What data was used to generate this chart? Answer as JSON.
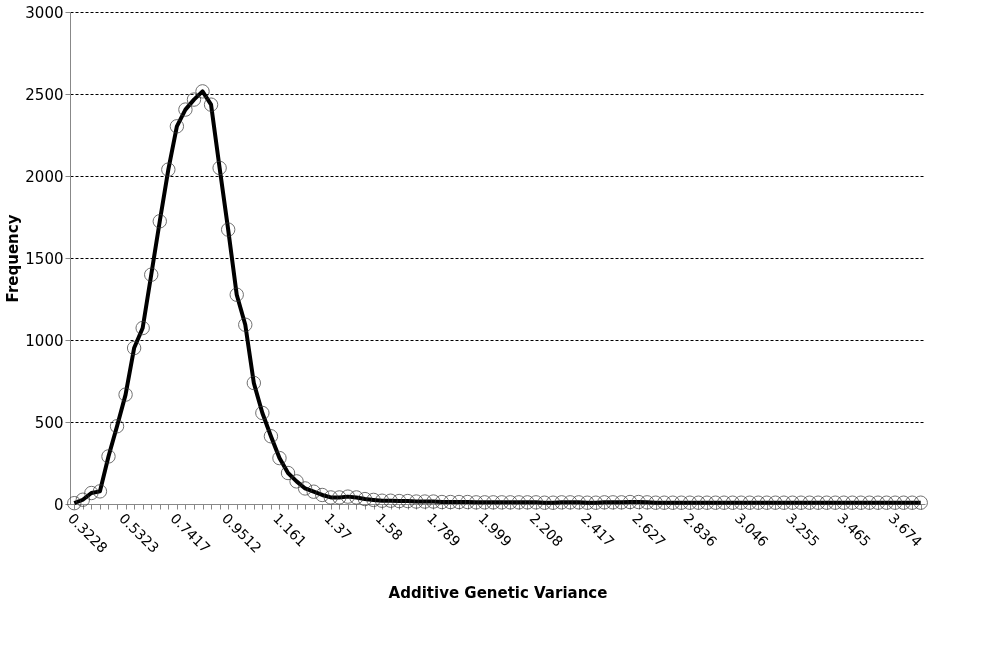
{
  "chart_data": {
    "type": "line",
    "xlabel": "Additive Genetic Variance",
    "ylabel": "Frequency",
    "categories": [
      "0.3228",
      null,
      null,
      null,
      null,
      null,
      "0.5323",
      null,
      null,
      null,
      null,
      null,
      "0.7417",
      null,
      null,
      null,
      null,
      null,
      "0.9512",
      null,
      null,
      null,
      null,
      null,
      "1.161",
      null,
      null,
      null,
      null,
      null,
      "1.37",
      null,
      null,
      null,
      null,
      null,
      "1.58",
      null,
      null,
      null,
      null,
      null,
      "1.789",
      null,
      null,
      null,
      null,
      null,
      "1.999",
      null,
      null,
      null,
      null,
      null,
      "2.208",
      null,
      null,
      null,
      null,
      null,
      "2.417",
      null,
      null,
      null,
      null,
      null,
      "2.627",
      null,
      null,
      null,
      null,
      null,
      "2.836",
      null,
      null,
      null,
      null,
      null,
      "3.046",
      null,
      null,
      null,
      null,
      null,
      "3.255",
      null,
      null,
      null,
      null,
      null,
      "3.465",
      null,
      null,
      null,
      null,
      null,
      "3.674",
      null,
      null,
      null
    ],
    "series": [
      {
        "color": "#000000",
        "values": [
          5,
          26,
          67,
          77,
          290,
          474,
          667,
          951,
          1073,
          1398,
          1724,
          2039,
          2303,
          2405,
          2466,
          2516,
          2435,
          2049,
          1673,
          1276,
          1093,
          738,
          555,
          413,
          280,
          189,
          138,
          95,
          75,
          55,
          40,
          40,
          45,
          40,
          30,
          25,
          20,
          20,
          18,
          18,
          15,
          15,
          15,
          12,
          12,
          12,
          12,
          10,
          10,
          10,
          10,
          10,
          10,
          10,
          10,
          8,
          8,
          10,
          10,
          10,
          8,
          8,
          10,
          10,
          10,
          12,
          12,
          10,
          8,
          8,
          8,
          8,
          8,
          8,
          8,
          8,
          8,
          8,
          8,
          8,
          8,
          8,
          8,
          8,
          8,
          8,
          8,
          8,
          8,
          8,
          8,
          8,
          8,
          8,
          8,
          8,
          8,
          8,
          8,
          8
        ]
      }
    ],
    "ylim": [
      0,
      3000
    ],
    "yticks": [
      0,
      500,
      1000,
      1500,
      2000,
      2500,
      3000
    ],
    "grid": "y",
    "marker": "circle",
    "line_style": "solid"
  }
}
